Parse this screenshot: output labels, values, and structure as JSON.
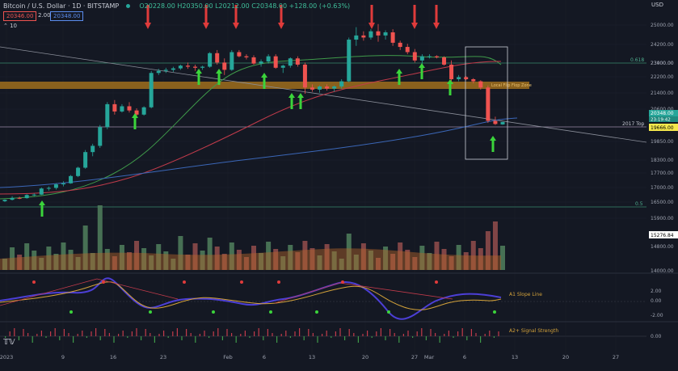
{
  "header": {
    "symbol": "Bitcoin / U.S. Dollar · 1D · BITSTAMP",
    "ohlc": "O20228.00 H20350.00 L20212.00 C20348.00 +128.00 (+0.63%)",
    "sell_price": "20346.00",
    "spread": "2.00",
    "buy_price": "20348.00",
    "indicator_count": "10",
    "currency": "USD"
  },
  "colors": {
    "background": "#141823",
    "up": "#26a69a",
    "down": "#ef5350",
    "zone": "#b27a1c"
  },
  "chart_data": {
    "type": "candlestick",
    "yticks": [
      25000,
      24200,
      23400,
      23000,
      22200,
      21400,
      20600,
      19850,
      18300,
      17700,
      17000,
      16500,
      15900,
      14800,
      14000
    ],
    "ytick_labels": [
      "25000.00",
      "24200.00",
      "23400.00",
      "23000.00",
      "22200.00",
      "21400.00",
      "20600.00",
      "19850.00",
      "18300.00",
      "17700.00",
      "17000.00",
      "16500.00",
      "15900.00",
      "14800.00",
      "14000.00"
    ],
    "xtick_labels": [
      "2023",
      "9",
      "16",
      "23",
      "Feb",
      "6",
      "13",
      "20",
      "27",
      "Mar",
      "6",
      "13",
      "20",
      "27"
    ],
    "price_labels": {
      "current": "20348.00",
      "countdown": "23:19:42",
      "level_2017": "19666.00",
      "volume": "15276.84"
    },
    "annotations": {
      "fib_618": "0.618",
      "fib_5": "0.5",
      "zone_label": "Local Flip Flop Zone",
      "top_2017": "2017 Top",
      "osc_label": "A1 Slope Line",
      "signal_label": "A2+ Signal Strength"
    },
    "osc_ticks": [
      "2.00",
      "0.00",
      "-2.00"
    ],
    "sig_ticks": [
      "0.00"
    ],
    "candles": [
      [
        16540,
        16630,
        16500,
        16610
      ],
      [
        16610,
        16780,
        16580,
        16700
      ],
      [
        16700,
        16760,
        16640,
        16690
      ],
      [
        16690,
        16880,
        16660,
        16840
      ],
      [
        16840,
        16920,
        16780,
        16860
      ],
      [
        16860,
        17200,
        16840,
        17150
      ],
      [
        17150,
        17250,
        17050,
        17180
      ],
      [
        17180,
        17400,
        17100,
        17350
      ],
      [
        17350,
        17500,
        17250,
        17400
      ],
      [
        17400,
        17800,
        17380,
        17750
      ],
      [
        17750,
        18200,
        17700,
        18150
      ],
      [
        18150,
        19000,
        18100,
        18900
      ],
      [
        18900,
        19300,
        18700,
        19200
      ],
      [
        19200,
        20200,
        19100,
        20100
      ],
      [
        20100,
        21300,
        20000,
        21200
      ],
      [
        21200,
        21400,
        20700,
        20850
      ],
      [
        20850,
        21200,
        20800,
        21100
      ],
      [
        21100,
        21300,
        20800,
        20900
      ],
      [
        20900,
        21000,
        20600,
        20700
      ],
      [
        20700,
        21100,
        20650,
        21050
      ],
      [
        21050,
        22800,
        21000,
        22700
      ],
      [
        22700,
        22900,
        22600,
        22800
      ],
      [
        22800,
        22950,
        22700,
        22850
      ],
      [
        22850,
        23000,
        22750,
        22920
      ],
      [
        22920,
        23100,
        22850,
        23050
      ],
      [
        23050,
        23200,
        22900,
        23000
      ],
      [
        23000,
        23100,
        22800,
        22950
      ],
      [
        22950,
        23050,
        22850,
        23000
      ],
      [
        23000,
        23700,
        22950,
        23650
      ],
      [
        23650,
        23800,
        23100,
        23200
      ],
      [
        23200,
        23400,
        22600,
        22850
      ],
      [
        22850,
        23800,
        22800,
        23700
      ],
      [
        23700,
        23800,
        23450,
        23500
      ],
      [
        23500,
        23600,
        23350,
        23450
      ],
      [
        23450,
        23550,
        23100,
        23150
      ],
      [
        23150,
        23350,
        23000,
        23250
      ],
      [
        23250,
        23600,
        23150,
        23500
      ],
      [
        23500,
        23600,
        22900,
        22950
      ],
      [
        22950,
        23100,
        22700,
        23050
      ],
      [
        23050,
        23450,
        22950,
        23400
      ],
      [
        23400,
        23500,
        23000,
        23100
      ],
      [
        23100,
        23200,
        21700,
        22000
      ],
      [
        22000,
        22150,
        21800,
        21900
      ],
      [
        21900,
        22100,
        21750,
        22050
      ],
      [
        22050,
        22150,
        21850,
        21950
      ],
      [
        21950,
        22100,
        21800,
        22050
      ],
      [
        22050,
        22400,
        21950,
        22300
      ],
      [
        22300,
        24400,
        22250,
        24300
      ],
      [
        24300,
        24900,
        24000,
        24500
      ],
      [
        24500,
        24700,
        24250,
        24400
      ],
      [
        24400,
        24800,
        24300,
        24700
      ],
      [
        24700,
        25050,
        24200,
        24500
      ],
      [
        24500,
        24750,
        24300,
        24650
      ],
      [
        24650,
        24800,
        24000,
        24150
      ],
      [
        24150,
        24250,
        23800,
        23950
      ],
      [
        23950,
        24100,
        23600,
        23700
      ],
      [
        23700,
        23850,
        23200,
        23300
      ],
      [
        23300,
        23600,
        23100,
        23500
      ],
      [
        23500,
        23600,
        23400,
        23500
      ],
      [
        23500,
        23550,
        23400,
        23450
      ],
      [
        23450,
        23500,
        23050,
        23100
      ],
      [
        23100,
        23300,
        22300,
        22400
      ],
      [
        22400,
        22600,
        22300,
        22500
      ],
      [
        22500,
        22550,
        22350,
        22400
      ],
      [
        22400,
        22450,
        22200,
        22300
      ],
      [
        22300,
        22350,
        21900,
        22000
      ],
      [
        22000,
        22100,
        20300,
        20400
      ],
      [
        20400,
        20600,
        20200,
        20250
      ],
      [
        20228,
        20350,
        20212,
        20348
      ]
    ]
  }
}
